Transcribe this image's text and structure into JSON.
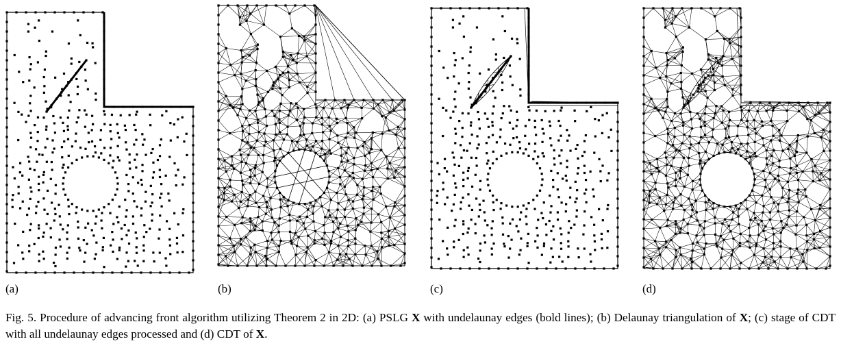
{
  "panels": [
    {
      "label": "(a)",
      "mode": "points"
    },
    {
      "label": "(b)",
      "mode": "delaunay"
    },
    {
      "label": "(c)",
      "mode": "partial"
    },
    {
      "label": "(d)",
      "mode": "cdt"
    }
  ],
  "caption": {
    "part1": "Fig. 5. Procedure of advancing front algorithm utilizing Theorem 2 in 2D: (a) PSLG ",
    "x1": "X",
    "part2": " with undelaunay edges (bold lines); (b) Delaunay triangulation of ",
    "x2": "X",
    "part3": "; (c) stage of CDT with all undelaunay edges processed and (d) CDT of ",
    "x3": "X",
    "part4": "."
  }
}
